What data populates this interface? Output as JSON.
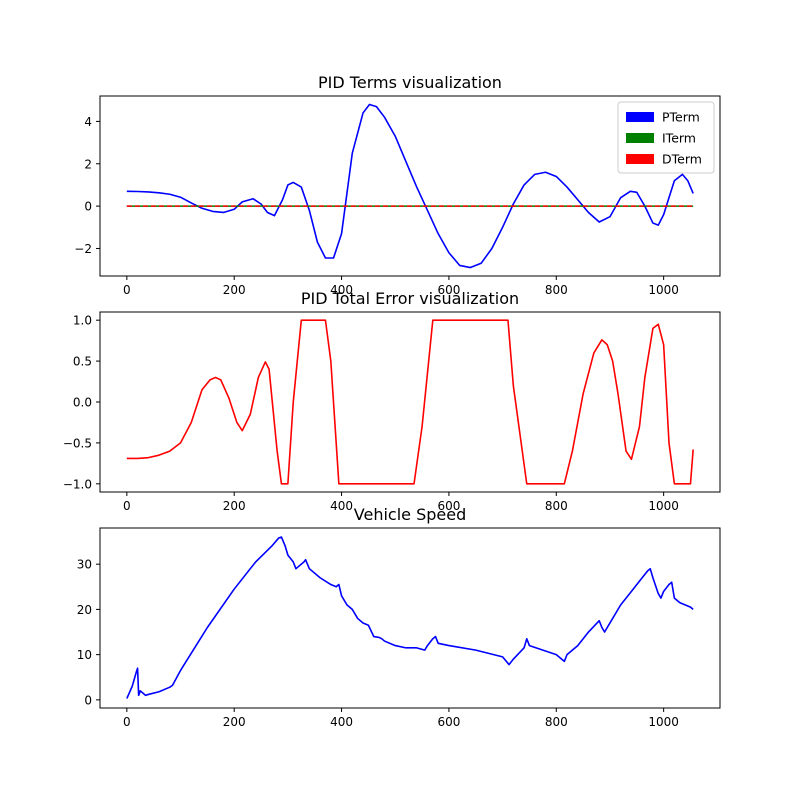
{
  "chart_data": [
    {
      "type": "line",
      "title": "PID Terms visualization",
      "xlabel": "",
      "ylabel": "",
      "xlim": [
        -50,
        1105
      ],
      "ylim": [
        -3.3,
        5.2
      ],
      "xticks": [
        0,
        200,
        400,
        600,
        800,
        1000
      ],
      "yticks": [
        -2,
        0,
        2,
        4
      ],
      "ytick_labels": [
        "−2",
        "0",
        "2",
        "4"
      ],
      "grid": false,
      "legend": "top-right",
      "series": [
        {
          "name": "PTerm",
          "color": "#0000ff",
          "x": [
            0,
            20,
            40,
            60,
            80,
            100,
            120,
            140,
            160,
            180,
            200,
            215,
            235,
            250,
            262,
            275,
            290,
            300,
            310,
            325,
            340,
            355,
            370,
            385,
            400,
            420,
            440,
            452,
            465,
            480,
            500,
            520,
            540,
            560,
            580,
            600,
            620,
            640,
            660,
            680,
            700,
            720,
            740,
            760,
            780,
            800,
            820,
            840,
            860,
            880,
            900,
            920,
            938,
            950,
            965,
            980,
            990,
            1000,
            1010,
            1020,
            1035,
            1045,
            1055
          ],
          "y": [
            0.7,
            0.69,
            0.67,
            0.63,
            0.56,
            0.42,
            0.15,
            -0.1,
            -0.25,
            -0.3,
            -0.15,
            0.2,
            0.35,
            0.1,
            -0.3,
            -0.45,
            0.3,
            1.0,
            1.12,
            0.9,
            -0.2,
            -1.7,
            -2.45,
            -2.45,
            -1.3,
            2.5,
            4.4,
            4.8,
            4.7,
            4.2,
            3.3,
            2.1,
            0.9,
            -0.2,
            -1.3,
            -2.2,
            -2.8,
            -2.9,
            -2.7,
            -2.0,
            -1.0,
            0.1,
            1.0,
            1.5,
            1.6,
            1.4,
            0.9,
            0.3,
            -0.3,
            -0.75,
            -0.5,
            0.4,
            0.7,
            0.65,
            0.0,
            -0.8,
            -0.9,
            -0.4,
            0.4,
            1.2,
            1.5,
            1.2,
            0.6
          ]
        },
        {
          "name": "ITerm",
          "color": "#008000",
          "x": [
            0,
            1055
          ],
          "y": [
            0,
            0
          ]
        },
        {
          "name": "DTerm",
          "color": "#ff0000",
          "x": [
            0,
            1055
          ],
          "y": [
            0,
            0
          ]
        }
      ]
    },
    {
      "type": "line",
      "title": "PID Total Error visualization",
      "xlabel": "",
      "ylabel": "",
      "xlim": [
        -50,
        1105
      ],
      "ylim": [
        -1.1,
        1.1
      ],
      "xticks": [
        0,
        200,
        400,
        600,
        800,
        1000
      ],
      "yticks": [
        -1.0,
        -0.5,
        0.0,
        0.5,
        1.0
      ],
      "ytick_labels": [
        "−1.0",
        "−0.5",
        "0.0",
        "0.5",
        "1.0"
      ],
      "grid": false,
      "series": [
        {
          "color": "#ff0000",
          "x": [
            0,
            20,
            40,
            60,
            80,
            100,
            120,
            140,
            155,
            165,
            175,
            190,
            205,
            215,
            230,
            245,
            258,
            265,
            280,
            288,
            300,
            310,
            325,
            340,
            370,
            380,
            395,
            420,
            500,
            535,
            550,
            570,
            600,
            700,
            710,
            720,
            745,
            760,
            800,
            815,
            830,
            850,
            870,
            885,
            895,
            905,
            915,
            930,
            940,
            955,
            965,
            980,
            990,
            1000,
            1010,
            1020,
            1035,
            1045,
            1050,
            1055
          ],
          "y": [
            -0.69,
            -0.69,
            -0.68,
            -0.65,
            -0.6,
            -0.5,
            -0.25,
            0.15,
            0.27,
            0.3,
            0.27,
            0.05,
            -0.25,
            -0.35,
            -0.15,
            0.3,
            0.49,
            0.4,
            -0.6,
            -1.0,
            -1.0,
            0.0,
            1.0,
            1.0,
            1.0,
            0.5,
            -1.0,
            -1.0,
            -1.0,
            -1.0,
            -0.3,
            1.0,
            1.0,
            1.0,
            1.0,
            0.2,
            -1.0,
            -1.0,
            -1.0,
            -1.0,
            -0.6,
            0.1,
            0.6,
            0.76,
            0.7,
            0.5,
            0.1,
            -0.6,
            -0.7,
            -0.3,
            0.3,
            0.9,
            0.95,
            0.7,
            -0.5,
            -1.0,
            -1.0,
            -1.0,
            -1.0,
            -0.58
          ]
        }
      ]
    },
    {
      "type": "line",
      "title": "Vehicle Speed",
      "xlabel": "",
      "ylabel": "",
      "xlim": [
        -50,
        1105
      ],
      "ylim": [
        -1.8,
        38
      ],
      "xticks": [
        0,
        200,
        400,
        600,
        800,
        1000
      ],
      "yticks": [
        0,
        10,
        20,
        30
      ],
      "ytick_labels": [
        "0",
        "10",
        "20",
        "30"
      ],
      "grid": false,
      "series": [
        {
          "color": "#0000ff",
          "x": [
            0,
            10,
            18,
            20,
            22,
            25,
            30,
            35,
            40,
            60,
            80,
            85,
            100,
            150,
            200,
            240,
            270,
            283,
            288,
            295,
            300,
            310,
            315,
            320,
            330,
            333,
            340,
            360,
            380,
            390,
            395,
            400,
            410,
            420,
            430,
            440,
            450,
            460,
            470,
            475,
            480,
            500,
            520,
            540,
            555,
            560,
            570,
            575,
            580,
            600,
            650,
            700,
            712,
            720,
            740,
            745,
            750,
            800,
            815,
            820,
            840,
            860,
            880,
            885,
            890,
            900,
            920,
            940,
            960,
            970,
            975,
            980,
            990,
            995,
            1000,
            1010,
            1015,
            1020,
            1030,
            1040,
            1050,
            1055
          ],
          "y": [
            0.3,
            3,
            6.3,
            7,
            1,
            2,
            1.5,
            1,
            1.2,
            1.8,
            2.8,
            3.2,
            6.5,
            16,
            24.5,
            30.5,
            34,
            35.8,
            36,
            34,
            32,
            30.5,
            29,
            29.5,
            30.5,
            31,
            29,
            27,
            25.5,
            25,
            25.5,
            23,
            21,
            20,
            18,
            17,
            16.5,
            14,
            13.8,
            13.5,
            13,
            12,
            11.5,
            11.5,
            11,
            12,
            13.5,
            14,
            12.5,
            12,
            11,
            9.5,
            7.8,
            9,
            11.5,
            13.5,
            12,
            10,
            8.5,
            10,
            12,
            15,
            17.5,
            16,
            15,
            17,
            21,
            24,
            27,
            28.5,
            29,
            27,
            23.5,
            22.5,
            24,
            25.5,
            26,
            22.5,
            21.5,
            21,
            20.5,
            20
          ]
        }
      ]
    }
  ]
}
